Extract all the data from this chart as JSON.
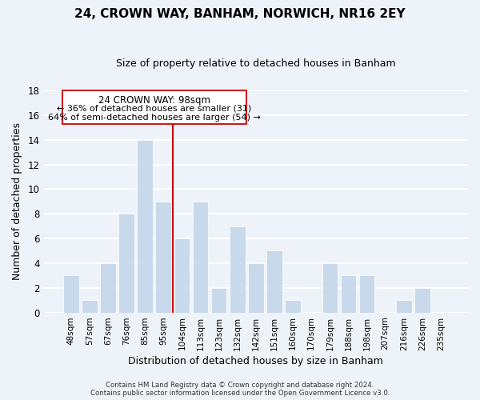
{
  "title": "24, CROWN WAY, BANHAM, NORWICH, NR16 2EY",
  "subtitle": "Size of property relative to detached houses in Banham",
  "xlabel": "Distribution of detached houses by size in Banham",
  "ylabel": "Number of detached properties",
  "bar_color": "#c8d9eb",
  "bar_edge_color": "#ffffff",
  "categories": [
    "48sqm",
    "57sqm",
    "67sqm",
    "76sqm",
    "85sqm",
    "95sqm",
    "104sqm",
    "113sqm",
    "123sqm",
    "132sqm",
    "142sqm",
    "151sqm",
    "160sqm",
    "170sqm",
    "179sqm",
    "188sqm",
    "198sqm",
    "207sqm",
    "216sqm",
    "226sqm",
    "235sqm"
  ],
  "values": [
    3,
    1,
    4,
    8,
    14,
    9,
    6,
    9,
    2,
    7,
    4,
    5,
    1,
    0,
    4,
    3,
    3,
    0,
    1,
    2,
    0
  ],
  "ylim": [
    0,
    18
  ],
  "yticks": [
    0,
    2,
    4,
    6,
    8,
    10,
    12,
    14,
    16,
    18
  ],
  "vline_x": 5.5,
  "vline_color": "#cc0000",
  "annotation_title": "24 CROWN WAY: 98sqm",
  "annotation_line1": "← 36% of detached houses are smaller (31)",
  "annotation_line2": "64% of semi-detached houses are larger (54) →",
  "annotation_box_color": "#ffffff",
  "annotation_box_edge": "#cc0000",
  "footer1": "Contains HM Land Registry data © Crown copyright and database right 2024.",
  "footer2": "Contains public sector information licensed under the Open Government Licence v3.0.",
  "background_color": "#eef3f9",
  "grid_color": "#ffffff"
}
